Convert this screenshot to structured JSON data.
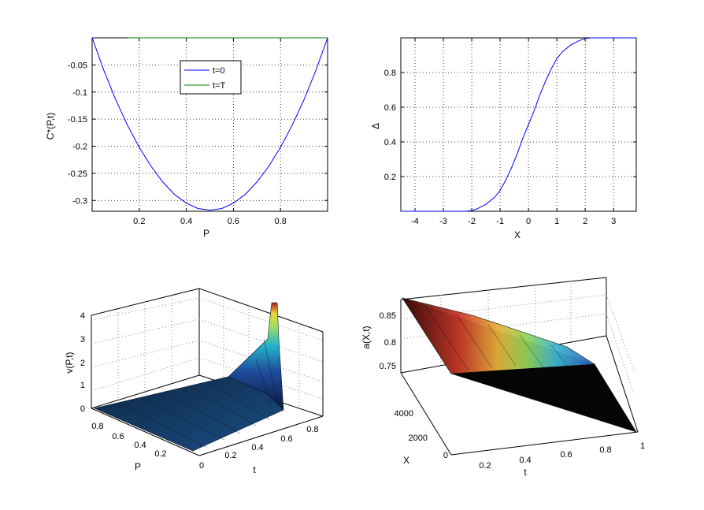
{
  "chart_data": [
    {
      "type": "line",
      "xlabel": "P",
      "ylabel": "C*(P,t)",
      "xlim": [
        0,
        1
      ],
      "ylim": [
        -0.32,
        0.0
      ],
      "xticks": [
        "0.2",
        "0.4",
        "0.6",
        "0.8"
      ],
      "xtick_values": [
        0.2,
        0.4,
        0.6,
        0.8
      ],
      "yticks": [
        "-0.05",
        "-0.1",
        "-0.15",
        "-0.2",
        "-0.25",
        "-0.3"
      ],
      "ytick_values": [
        -0.05,
        -0.1,
        -0.15,
        -0.2,
        -0.25,
        -0.3
      ],
      "grid": true,
      "legend_position": "top-center",
      "series": [
        {
          "name": "t=0",
          "color": "#0000ff",
          "x": [
            0,
            0.05,
            0.1,
            0.15,
            0.2,
            0.25,
            0.3,
            0.35,
            0.4,
            0.45,
            0.5,
            0.55,
            0.6,
            0.65,
            0.7,
            0.75,
            0.8,
            0.85,
            0.9,
            0.95,
            1.0
          ],
          "y": [
            0,
            -0.06,
            -0.114,
            -0.161,
            -0.202,
            -0.237,
            -0.266,
            -0.289,
            -0.305,
            -0.315,
            -0.318,
            -0.315,
            -0.305,
            -0.289,
            -0.266,
            -0.237,
            -0.202,
            -0.161,
            -0.114,
            -0.06,
            0
          ]
        },
        {
          "name": "t=T",
          "color": "#008000",
          "x": [
            0.15,
            1.0
          ],
          "y": [
            0,
            0
          ]
        }
      ]
    },
    {
      "type": "line",
      "xlabel": "X",
      "ylabel": "Δ",
      "xlim": [
        -4.5,
        3.8
      ],
      "ylim": [
        0,
        1.0
      ],
      "xticks": [
        "-4",
        "-3",
        "-2",
        "-1",
        "0",
        "1",
        "2",
        "3"
      ],
      "xtick_values": [
        -4,
        -3,
        -2,
        -1,
        0,
        1,
        2,
        3
      ],
      "yticks": [
        "0.2",
        "0.4",
        "0.6",
        "0.8"
      ],
      "ytick_values": [
        0.2,
        0.4,
        0.6,
        0.8
      ],
      "grid": true,
      "series": [
        {
          "color": "#0000ff",
          "x": [
            -4.5,
            -3,
            -2.2,
            -2.0,
            -1.8,
            -1.5,
            -1.2,
            -1.0,
            -0.8,
            -0.6,
            -0.4,
            -0.2,
            0.0,
            0.2,
            0.4,
            0.6,
            0.8,
            1.0,
            1.2,
            1.5,
            1.8,
            2.0,
            2.2,
            3.8
          ],
          "y": [
            0,
            0,
            0,
            0.004,
            0.015,
            0.04,
            0.08,
            0.12,
            0.18,
            0.25,
            0.33,
            0.42,
            0.5,
            0.58,
            0.67,
            0.75,
            0.82,
            0.88,
            0.92,
            0.96,
            0.985,
            0.996,
            1.0,
            1.0
          ]
        }
      ]
    },
    {
      "type": "surface",
      "xlabel": "t",
      "ylabel": "P",
      "zlabel": "v(P,t)",
      "xticks": [
        "0",
        "0.2",
        "0.4",
        "0.6",
        "0.8"
      ],
      "yticks": [
        "0.2",
        "0.4",
        "0.6",
        "0.8"
      ],
      "zticks": [
        "0",
        "1",
        "2",
        "3",
        "4"
      ],
      "zlim": [
        0,
        4.3
      ],
      "colormap": "jet",
      "peak": {
        "P": 0.0,
        "t": 1.0,
        "v": 4.3
      }
    },
    {
      "type": "surface",
      "xlabel": "t",
      "ylabel": "X",
      "zlabel": "a(X,t)",
      "xticks": [
        "0.2",
        "0.4",
        "0.6",
        "0.8",
        "1"
      ],
      "yticks": [
        "0",
        "2000",
        "4000"
      ],
      "zticks": [
        "0.75",
        "0.8",
        "0.85"
      ],
      "zlim": [
        0.72,
        0.88
      ],
      "colormap": "jet"
    }
  ]
}
